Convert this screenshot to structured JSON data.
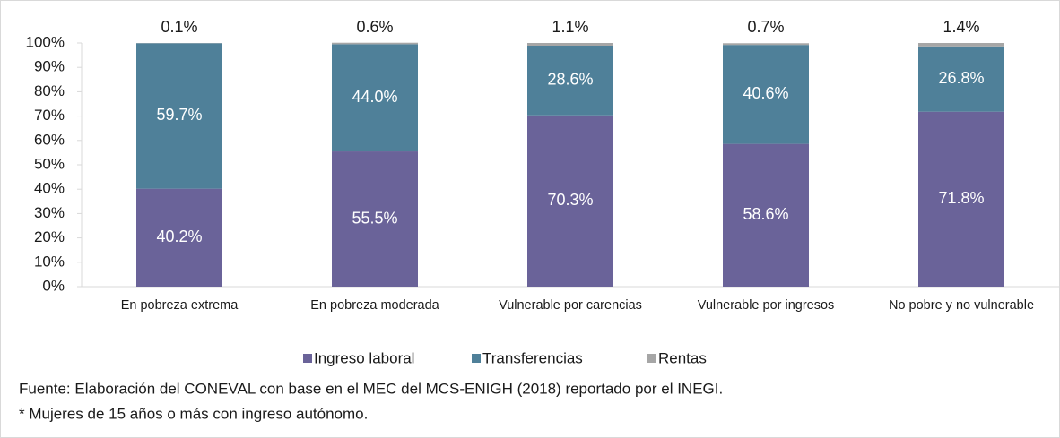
{
  "chart_data": {
    "type": "stacked_bar",
    "categories": [
      "En pobreza extrema",
      "En pobreza moderada",
      "Vulnerable por carencias",
      "Vulnerable por ingresos",
      "No pobre y no vulnerable"
    ],
    "series": [
      {
        "name": "Ingreso laboral",
        "color": "#6a6399",
        "values": [
          40.2,
          55.5,
          70.3,
          58.6,
          71.8
        ],
        "value_labels": [
          "40.2%",
          "55.5%",
          "70.3%",
          "58.6%",
          "71.8%"
        ]
      },
      {
        "name": "Transferencias",
        "color": "#4f8099",
        "values": [
          59.7,
          44.0,
          28.6,
          40.6,
          26.8
        ],
        "value_labels": [
          "59.7%",
          "44.0%",
          "28.6%",
          "40.6%",
          "26.8%"
        ]
      },
      {
        "name": "Rentas",
        "color": "#a6a6a6",
        "values": [
          0.1,
          0.6,
          1.1,
          0.7,
          1.4
        ],
        "value_labels": [
          "0.1%",
          "0.6%",
          "1.1%",
          "0.7%",
          "1.4%"
        ]
      }
    ],
    "ylim": [
      0,
      100
    ],
    "yticks": [
      {
        "value": 0,
        "label": "0%"
      },
      {
        "value": 10,
        "label": "10%"
      },
      {
        "value": 20,
        "label": "20%"
      },
      {
        "value": 30,
        "label": "30%"
      },
      {
        "value": 40,
        "label": "40%"
      },
      {
        "value": 50,
        "label": "50%"
      },
      {
        "value": 60,
        "label": "60%"
      },
      {
        "value": 70,
        "label": "70%"
      },
      {
        "value": 80,
        "label": "80%"
      },
      {
        "value": 90,
        "label": "90%"
      },
      {
        "value": 100,
        "label": "100%"
      }
    ],
    "legend": "bottom",
    "notes": [
      "Fuente: Elaboración del CONEVAL con base en el MEC del MCS-ENIGH (2018) reportado por el INEGI.",
      "* Mujeres de 15 años o más con ingreso autónomo."
    ]
  }
}
